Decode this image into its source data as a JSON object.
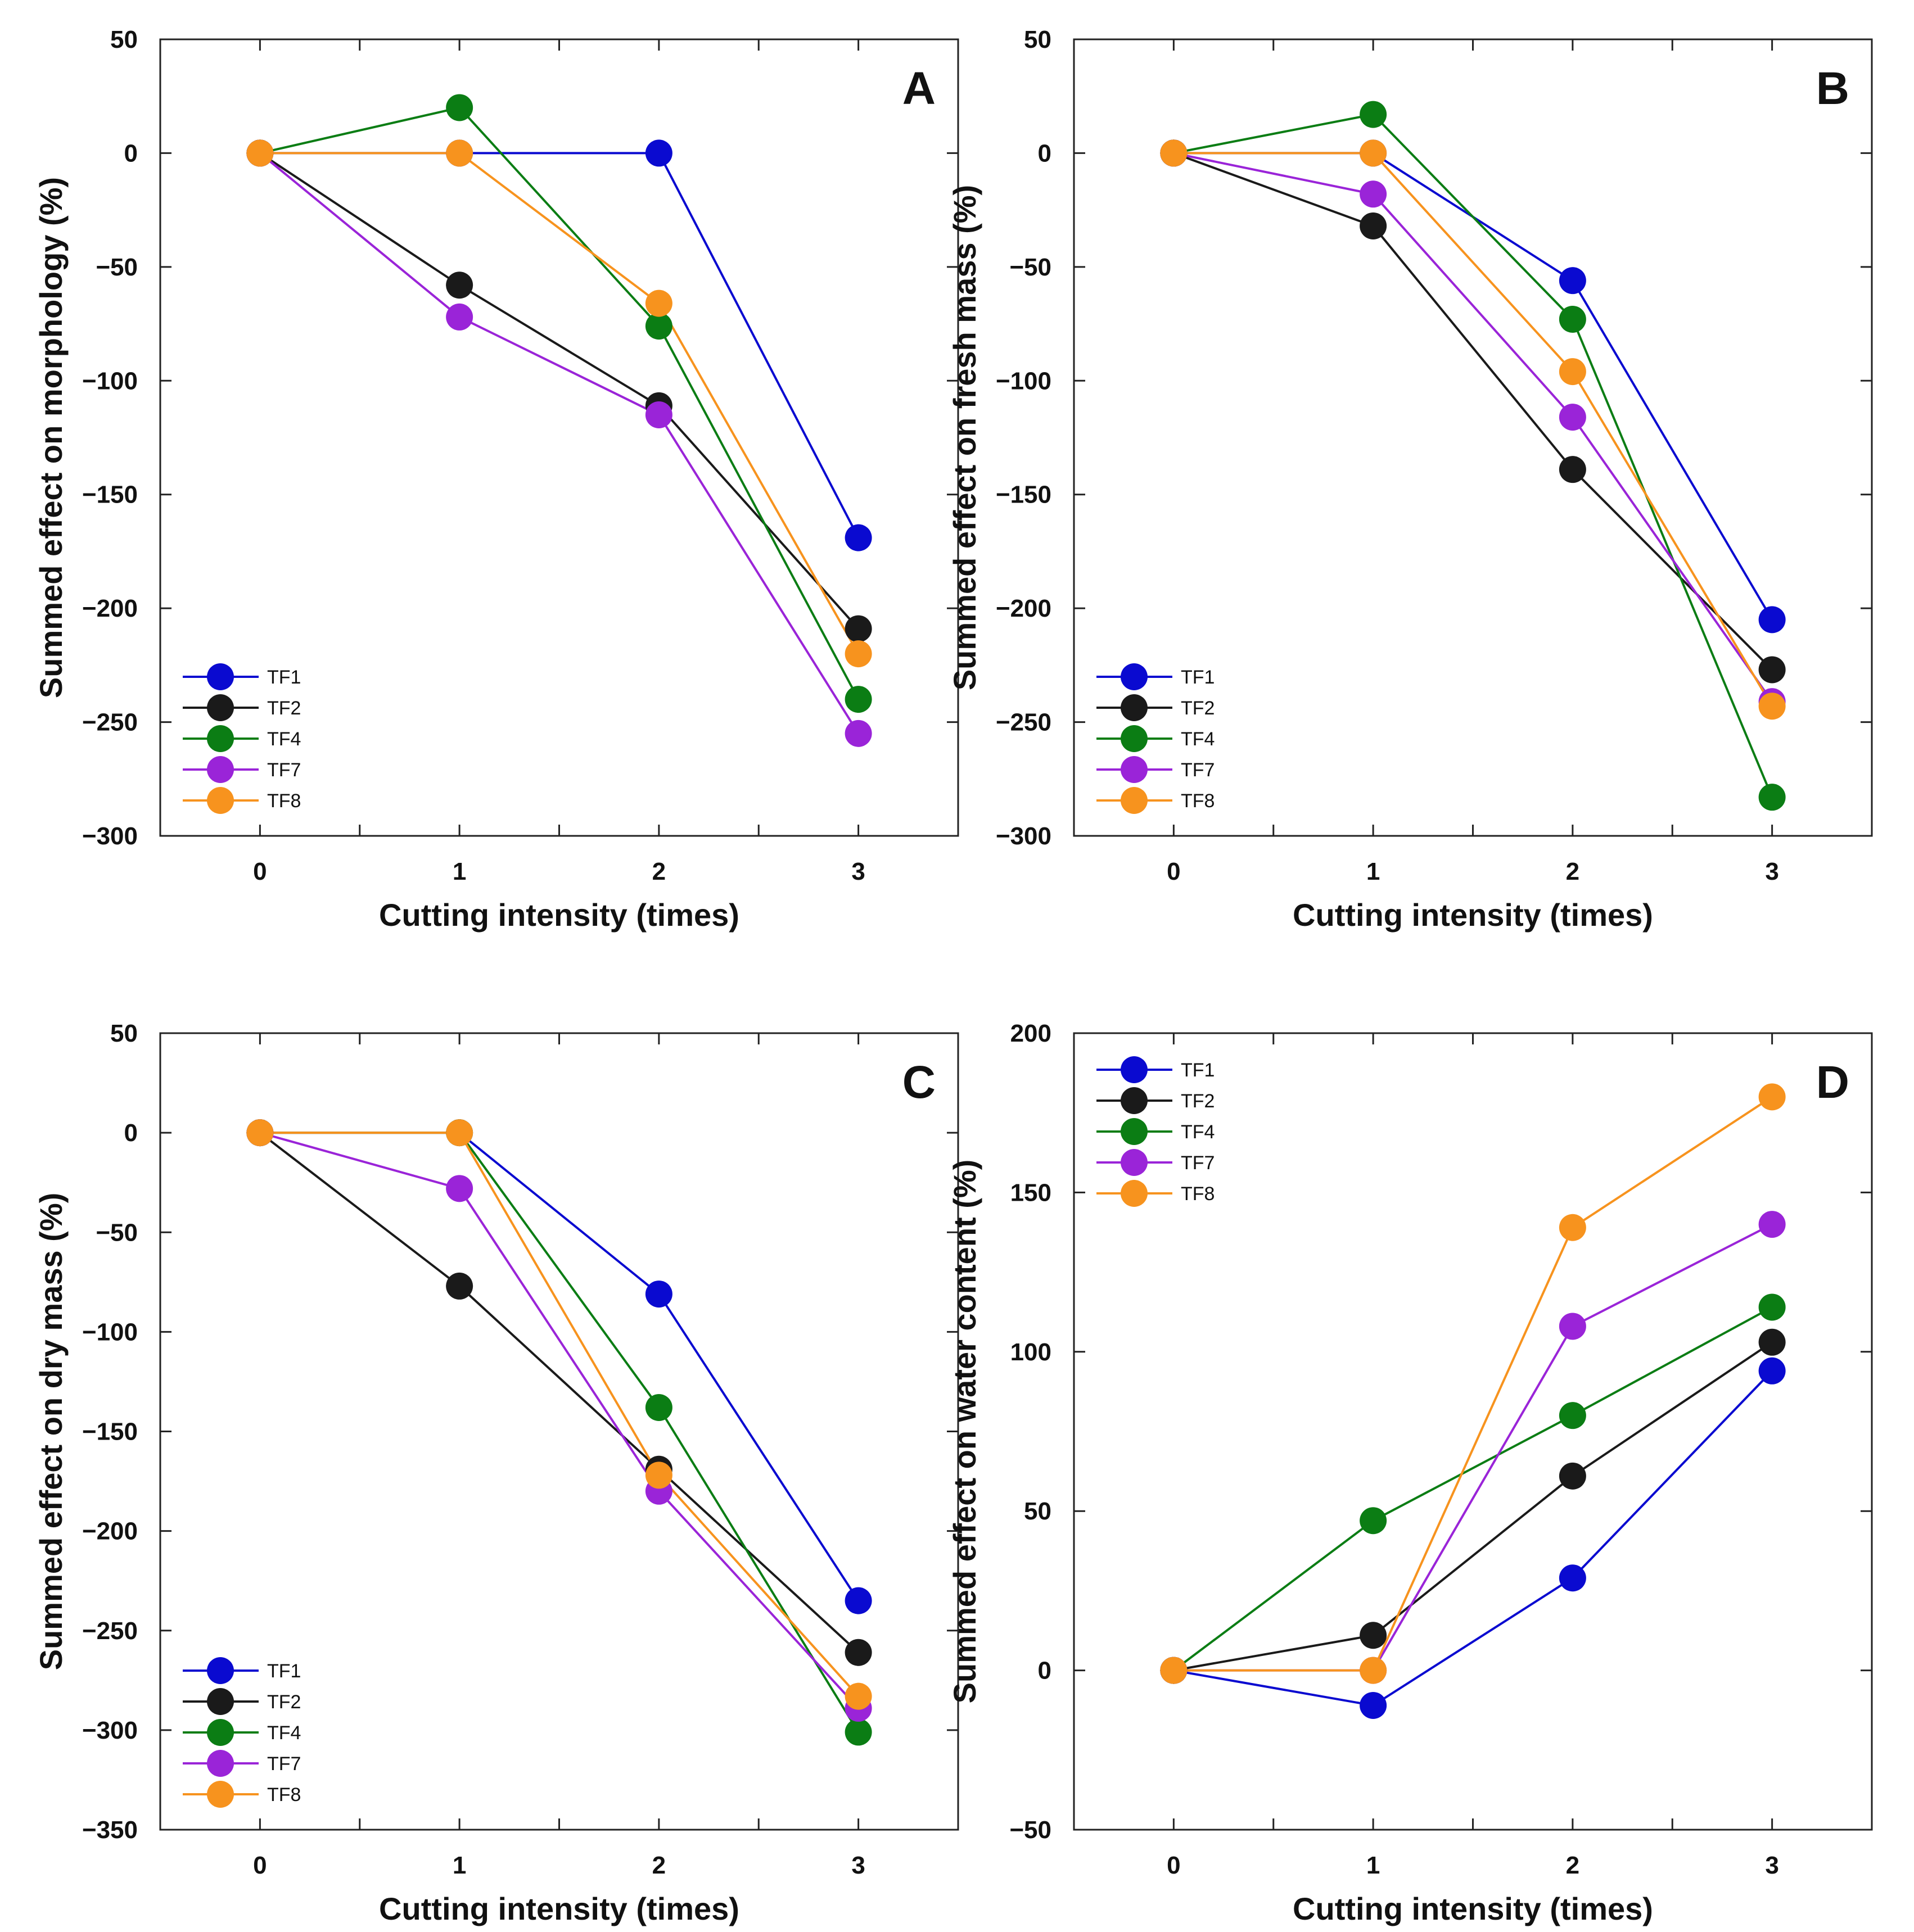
{
  "colors": {
    "TF1": "#0a0ad0",
    "TF2": "#1a1a1a",
    "TF4": "#0b7d14",
    "TF7": "#9a24d8",
    "TF8": "#f7931e"
  },
  "chart_data": [
    {
      "type": "line",
      "letter": "A",
      "xlabel": "Cutting intensity (times)",
      "ylabel": "Summed effect on morphology (%)",
      "x": [
        0,
        1,
        2,
        3
      ],
      "xlim": [
        -0.5,
        3.5
      ],
      "ylim": [
        -300,
        50
      ],
      "yticks": [
        -300,
        -250,
        -200,
        -150,
        -100,
        -50,
        0,
        50
      ],
      "legend": "bottom-left",
      "series": [
        {
          "name": "TF1",
          "values": [
            0,
            0,
            0,
            -169
          ]
        },
        {
          "name": "TF2",
          "values": [
            0,
            -58,
            -111,
            -209
          ]
        },
        {
          "name": "TF4",
          "values": [
            0,
            20,
            -76,
            -240
          ]
        },
        {
          "name": "TF7",
          "values": [
            0,
            -72,
            -115,
            -255
          ]
        },
        {
          "name": "TF8",
          "values": [
            0,
            0,
            -66,
            -220
          ]
        }
      ]
    },
    {
      "type": "line",
      "letter": "B",
      "xlabel": "Cutting intensity (times)",
      "ylabel": "Summed effect on fresh mass (%)",
      "x": [
        0,
        1,
        2,
        3
      ],
      "xlim": [
        -0.5,
        3.5
      ],
      "ylim": [
        -300,
        50
      ],
      "yticks": [
        -300,
        -250,
        -200,
        -150,
        -100,
        -50,
        0,
        50
      ],
      "legend": "bottom-left",
      "series": [
        {
          "name": "TF1",
          "values": [
            0,
            0,
            -56,
            -205
          ]
        },
        {
          "name": "TF2",
          "values": [
            0,
            -32,
            -139,
            -227
          ]
        },
        {
          "name": "TF4",
          "values": [
            0,
            17,
            -73,
            -283
          ]
        },
        {
          "name": "TF7",
          "values": [
            0,
            -18,
            -116,
            -241
          ]
        },
        {
          "name": "TF8",
          "values": [
            0,
            0,
            -96,
            -243
          ]
        }
      ]
    },
    {
      "type": "line",
      "letter": "C",
      "xlabel": "Cutting intensity (times)",
      "ylabel": "Summed effect on dry mass (%)",
      "x": [
        0,
        1,
        2,
        3
      ],
      "xlim": [
        -0.5,
        3.5
      ],
      "ylim": [
        -350,
        50
      ],
      "yticks": [
        -350,
        -300,
        -250,
        -200,
        -150,
        -100,
        -50,
        0,
        50
      ],
      "legend": "bottom-left",
      "series": [
        {
          "name": "TF1",
          "values": [
            0,
            0,
            -81,
            -235
          ]
        },
        {
          "name": "TF2",
          "values": [
            0,
            -77,
            -169,
            -261
          ]
        },
        {
          "name": "TF4",
          "values": [
            0,
            0,
            -138,
            -301
          ]
        },
        {
          "name": "TF7",
          "values": [
            0,
            -28,
            -180,
            -289
          ]
        },
        {
          "name": "TF8",
          "values": [
            0,
            0,
            -172,
            -283
          ]
        }
      ]
    },
    {
      "type": "line",
      "letter": "D",
      "xlabel": "Cutting intensity (times)",
      "ylabel": "Summed effect on water content (%)",
      "x": [
        0,
        1,
        2,
        3
      ],
      "xlim": [
        -0.5,
        3.5
      ],
      "ylim": [
        -50,
        200
      ],
      "yticks": [
        -50,
        0,
        50,
        100,
        150,
        200
      ],
      "legend": "top-left",
      "series": [
        {
          "name": "TF1",
          "values": [
            0,
            -11,
            29,
            94
          ]
        },
        {
          "name": "TF2",
          "values": [
            0,
            11,
            61,
            103
          ]
        },
        {
          "name": "TF4",
          "values": [
            0,
            47,
            80,
            114
          ]
        },
        {
          "name": "TF7",
          "values": [
            0,
            0,
            108,
            140
          ]
        },
        {
          "name": "TF8",
          "values": [
            0,
            0,
            139,
            180
          ]
        }
      ]
    }
  ]
}
